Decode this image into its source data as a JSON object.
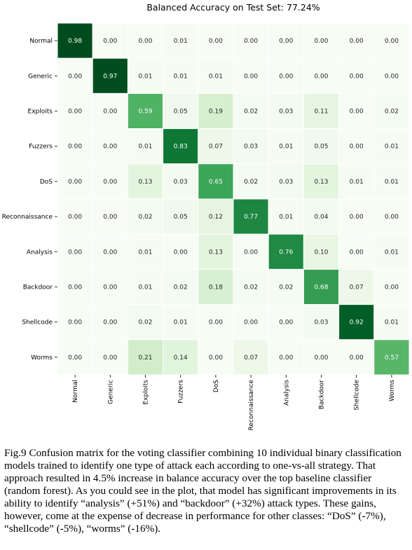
{
  "chart_data": {
    "type": "heatmap",
    "title": "Balanced Accuracy on Test Set: 77.24%",
    "row_labels": [
      "Normal",
      "Generic",
      "Exploits",
      "Fuzzers",
      "DoS",
      "Reconnaissance",
      "Analysis",
      "Backdoor",
      "Shellcode",
      "Worms"
    ],
    "col_labels": [
      "Normal",
      "Generic",
      "Exploits",
      "Fuzzers",
      "DoS",
      "Reconnaissance",
      "Analysis",
      "Backdoor",
      "Shellcode",
      "Worms"
    ],
    "values": [
      [
        0.98,
        0.0,
        0.0,
        0.01,
        0.0,
        0.0,
        0.0,
        0.0,
        0.0,
        0.0
      ],
      [
        0.0,
        0.97,
        0.01,
        0.01,
        0.01,
        0.0,
        0.0,
        0.0,
        0.0,
        0.0
      ],
      [
        0.0,
        0.0,
        0.59,
        0.05,
        0.19,
        0.02,
        0.03,
        0.11,
        0.0,
        0.02
      ],
      [
        0.0,
        0.0,
        0.01,
        0.83,
        0.07,
        0.03,
        0.01,
        0.05,
        0.0,
        0.01
      ],
      [
        0.0,
        0.0,
        0.13,
        0.03,
        0.65,
        0.02,
        0.03,
        0.13,
        0.01,
        0.01
      ],
      [
        0.0,
        0.0,
        0.02,
        0.05,
        0.12,
        0.77,
        0.01,
        0.04,
        0.0,
        0.0
      ],
      [
        0.0,
        0.0,
        0.01,
        0.0,
        0.13,
        0.0,
        0.76,
        0.1,
        0.0,
        0.01
      ],
      [
        0.0,
        0.0,
        0.01,
        0.02,
        0.18,
        0.02,
        0.02,
        0.68,
        0.07,
        0.0
      ],
      [
        0.0,
        0.0,
        0.02,
        0.01,
        0.0,
        0.0,
        0.0,
        0.03,
        0.92,
        0.01
      ],
      [
        0.0,
        0.0,
        0.21,
        0.14,
        0.0,
        0.07,
        0.0,
        0.0,
        0.0,
        0.57
      ]
    ],
    "colormap": "Greens",
    "value_range": [
      0,
      1
    ],
    "grid_color": "#ffffff",
    "value_format": "2 decimals"
  },
  "caption": "Fig.9 Confusion matrix for the voting classifier combining 10 individual binary classification models trained to identify one type of attack each according to one-vs-all strategy. That approach resulted in 4.5% increase in balance accuracy over the top baseline classifier (random forest). As you could see in the plot, that model has significant improvements in its ability to identify “analysis” (+51%) and “backdoor” (+32%) attack types. These gains, however, come at the expense of decrease in performance for other classes: “DoS” (-7%), “shellcode” (-5%), “worms” (-16%)."
}
